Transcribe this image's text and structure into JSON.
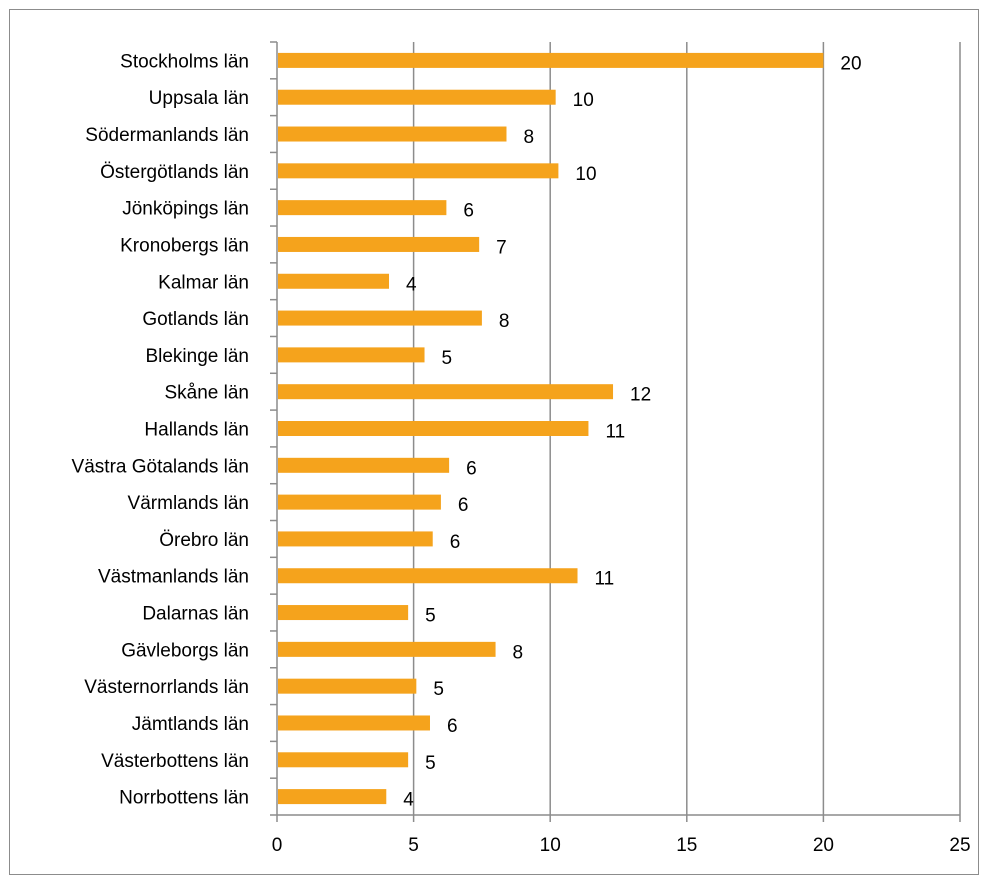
{
  "chart_data": {
    "type": "bar",
    "orientation": "horizontal",
    "title": "",
    "xlabel": "",
    "ylabel": "",
    "categories": [
      "Stockholms län",
      "Uppsala län",
      "Södermanlands län",
      "Östergötlands län",
      "Jönköpings län",
      "Kronobergs län",
      "Kalmar län",
      "Gotlands län",
      "Blekinge län",
      "Skåne län",
      "Hallands län",
      "Västra Götalands län",
      "Värmlands län",
      "Örebro län",
      "Västmanlands län",
      "Dalarnas län",
      "Gävleborgs län",
      "Västernorrlands län",
      "Jämtlands län",
      "Västerbottens län",
      "Norrbottens län"
    ],
    "values": [
      20,
      10.2,
      8.4,
      10.3,
      6.2,
      7.4,
      4.1,
      7.5,
      5.4,
      12.3,
      11.4,
      6.3,
      6,
      5.7,
      11,
      4.8,
      8,
      5.1,
      5.6,
      4.8,
      4
    ],
    "data_labels": [
      "20",
      "10",
      "8",
      "10",
      "6",
      "7",
      "4",
      "8",
      "5",
      "12",
      "11",
      "6",
      "6",
      "6",
      "11",
      "5",
      "8",
      "5",
      "6",
      "5",
      "4"
    ],
    "xlim": [
      0,
      25
    ],
    "xticks": [
      "0",
      "5",
      "10",
      "15",
      "20",
      "25"
    ],
    "grid": "vertical",
    "legend": "none",
    "bar_color": "#F5A31C",
    "grid_color": "#8c8c8c"
  }
}
